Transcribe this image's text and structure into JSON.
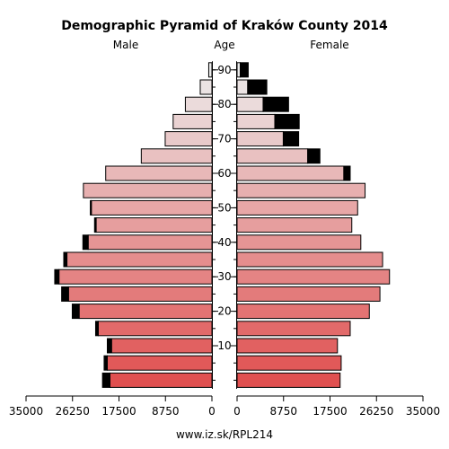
{
  "chart_data": {
    "type": "population-pyramid",
    "title": "Demographic Pyramid of Kraków County 2014",
    "left_label": "Male",
    "center_label": "Age",
    "right_label": "Female",
    "footer": "www.iz.sk/RPL214",
    "xlim": [
      0,
      35000
    ],
    "x_ticks": [
      0,
      8750,
      17500,
      26250,
      35000
    ],
    "x_tick_labels": [
      "0",
      "8750",
      "17500",
      "26250",
      "35000"
    ],
    "age_ticks": [
      10,
      20,
      30,
      40,
      50,
      60,
      70,
      80,
      90
    ],
    "age_groups": [
      "0-4",
      "5-9",
      "10-14",
      "15-19",
      "20-24",
      "25-29",
      "30-34",
      "35-39",
      "40-44",
      "45-49",
      "50-54",
      "55-59",
      "60-64",
      "65-69",
      "70-74",
      "75-79",
      "80-84",
      "85-89",
      "90+"
    ],
    "male": {
      "base": [
        19200,
        19700,
        18900,
        21400,
        25000,
        27000,
        28800,
        27300,
        23300,
        21800,
        22700,
        24200,
        20000,
        13300,
        8800,
        7300,
        5000,
        2200,
        600
      ],
      "excess": [
        1400,
        600,
        800,
        500,
        1300,
        1300,
        800,
        600,
        1000,
        300,
        200,
        0,
        0,
        0,
        0,
        0,
        0,
        0,
        0
      ]
    },
    "female": {
      "base": [
        19400,
        19600,
        18900,
        21300,
        24900,
        26900,
        28700,
        27400,
        23300,
        21600,
        22700,
        24100,
        20100,
        13300,
        8700,
        7100,
        4900,
        2000,
        600
      ],
      "excess": [
        0,
        0,
        0,
        0,
        0,
        0,
        0,
        0,
        0,
        0,
        0,
        0,
        1200,
        2300,
        2900,
        4600,
        4800,
        3600,
        1500
      ]
    },
    "colors": {
      "bar_young": "#e05050",
      "bar_old": "#ececec",
      "excess": "#000000",
      "outline": "#000000"
    }
  }
}
